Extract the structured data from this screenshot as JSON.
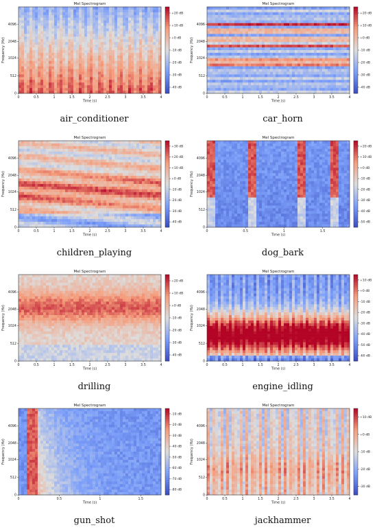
{
  "chart_data": [
    {
      "type": "heatmap",
      "caption": "air_conditioner",
      "title": "Mel Spectrogram",
      "xlabel": "Time (s)",
      "ylabel": "Frequency (Hz)",
      "xticks": [
        "0",
        "0.5",
        "1",
        "1.5",
        "2",
        "2.5",
        "3",
        "3.5",
        "4"
      ],
      "yticks": [
        "0",
        "512",
        "1024",
        "2048",
        "4096"
      ],
      "cbar_ticks": [
        "+20 dB",
        "+10 dB",
        "+0 dB",
        "-10 dB",
        "-20 dB",
        "-30 dB",
        "-40 dB"
      ],
      "xlim": [
        0,
        4
      ],
      "cbar_range": [
        -45,
        25
      ],
      "pattern": "lowband"
    },
    {
      "type": "heatmap",
      "caption": "car_horn",
      "title": "Mel Spectrogram",
      "xlabel": "Time (s)",
      "ylabel": "Frequency (Hz)",
      "xticks": [
        "0",
        "0.5",
        "1",
        "1.5",
        "2",
        "2.5",
        "3",
        "3.5",
        "4"
      ],
      "yticks": [
        "0",
        "512",
        "1024",
        "2048",
        "4096"
      ],
      "cbar_ticks": [
        "+20 dB",
        "+10 dB",
        "+0 dB",
        "-10 dB",
        "-20 dB",
        "-30 dB",
        "-40 dB"
      ],
      "xlim": [
        0,
        4
      ],
      "cbar_range": [
        -45,
        25
      ],
      "pattern": "horizontal"
    },
    {
      "type": "heatmap",
      "caption": "children_playing",
      "title": "Mel Spectrogram",
      "xlabel": "Time (s)",
      "ylabel": "Frequency (Hz)",
      "xticks": [
        "0",
        "0.5",
        "1",
        "1.5",
        "2",
        "2.5",
        "3",
        "3.5",
        "4"
      ],
      "yticks": [
        "0",
        "512",
        "1024",
        "2048",
        "4096"
      ],
      "cbar_ticks": [
        "+30 dB",
        "+20 dB",
        "+10 dB",
        "+0 dB",
        "-10 dB",
        "-20 dB",
        "-30 dB",
        "-40 dB"
      ],
      "xlim": [
        0,
        4
      ],
      "cbar_range": [
        -45,
        35
      ],
      "pattern": "midband"
    },
    {
      "type": "heatmap",
      "caption": "dog_bark",
      "title": "Mel Spectrogram",
      "xlabel": "Time (s)",
      "ylabel": "Frequency (Hz)",
      "xticks": [
        "0",
        "0.5",
        "1",
        "1.5"
      ],
      "yticks": [
        "0",
        "512",
        "1024",
        "2048",
        "4096"
      ],
      "cbar_ticks": [
        "+20 dB",
        "+10 dB",
        "+0 dB",
        "-10 dB",
        "-20 dB",
        "-30 dB",
        "-40 dB",
        "-50 dB"
      ],
      "xlim": [
        0,
        1.85
      ],
      "cbar_range": [
        -55,
        25
      ],
      "pattern": "vertical",
      "events": [
        0.03,
        0.55,
        1.2,
        1.63
      ]
    },
    {
      "type": "heatmap",
      "caption": "drilling",
      "title": "Mel Spectrogram",
      "xlabel": "Time (s)",
      "ylabel": "Frequency (Hz)",
      "xticks": [
        "0",
        "0.5",
        "1",
        "1.5",
        "2",
        "2.5",
        "3",
        "3.5",
        "4"
      ],
      "yticks": [
        "0",
        "512",
        "1024",
        "2048",
        "4096"
      ],
      "cbar_ticks": [
        "+20 dB",
        "+10 dB",
        "+0 dB",
        "-10 dB",
        "-20 dB",
        "-30 dB",
        "-40 dB"
      ],
      "xlim": [
        0,
        4
      ],
      "cbar_range": [
        -45,
        25
      ],
      "pattern": "highband"
    },
    {
      "type": "heatmap",
      "caption": "engine_idling",
      "title": "Mel Spectrogram",
      "xlabel": "Time (s)",
      "ylabel": "Frequency (Hz)",
      "xticks": [
        "0",
        "0.5",
        "1",
        "1.5",
        "2",
        "2.5",
        "3",
        "3.5",
        "4"
      ],
      "yticks": [
        "0",
        "512",
        "1024",
        "2048",
        "4096"
      ],
      "cbar_ticks": [
        "+10 dB",
        "+0 dB",
        "-10 dB",
        "-20 dB",
        "-30 dB",
        "-40 dB",
        "-50 dB",
        "-60 dB"
      ],
      "xlim": [
        0,
        4
      ],
      "cbar_range": [
        -65,
        15
      ],
      "pattern": "engine"
    },
    {
      "type": "heatmap",
      "caption": "gun_shot",
      "title": "Mel Spectrogram",
      "xlabel": "Time (s)",
      "ylabel": "Frequency (Hz)",
      "xticks": [
        "0",
        "0.5",
        "1",
        "1.5"
      ],
      "yticks": [
        "0",
        "512",
        "1024",
        "2048",
        "4096"
      ],
      "cbar_ticks": [
        "-10 dB",
        "-20 dB",
        "-30 dB",
        "-40 dB",
        "-50 dB",
        "-60 dB",
        "-70 dB",
        "-80 dB"
      ],
      "xlim": [
        0,
        1.75
      ],
      "cbar_range": [
        -85,
        -5
      ],
      "pattern": "impulse",
      "events": [
        0.15
      ]
    },
    {
      "type": "heatmap",
      "caption": "jackhammer",
      "title": "Mel Spectrogram",
      "xlabel": "Time (s)",
      "ylabel": "Frequency (Hz)",
      "xticks": [
        "0",
        "0.5",
        "1",
        "1.5",
        "2",
        "2.5",
        "3",
        "3.5",
        "4"
      ],
      "yticks": [
        "0",
        "512",
        "1024",
        "2048",
        "4096"
      ],
      "cbar_ticks": [
        "+10 dB",
        "+0 dB",
        "-10 dB",
        "-20 dB",
        "-30 dB"
      ],
      "xlim": [
        0,
        4
      ],
      "cbar_range": [
        -35,
        15
      ],
      "pattern": "broadband"
    }
  ]
}
